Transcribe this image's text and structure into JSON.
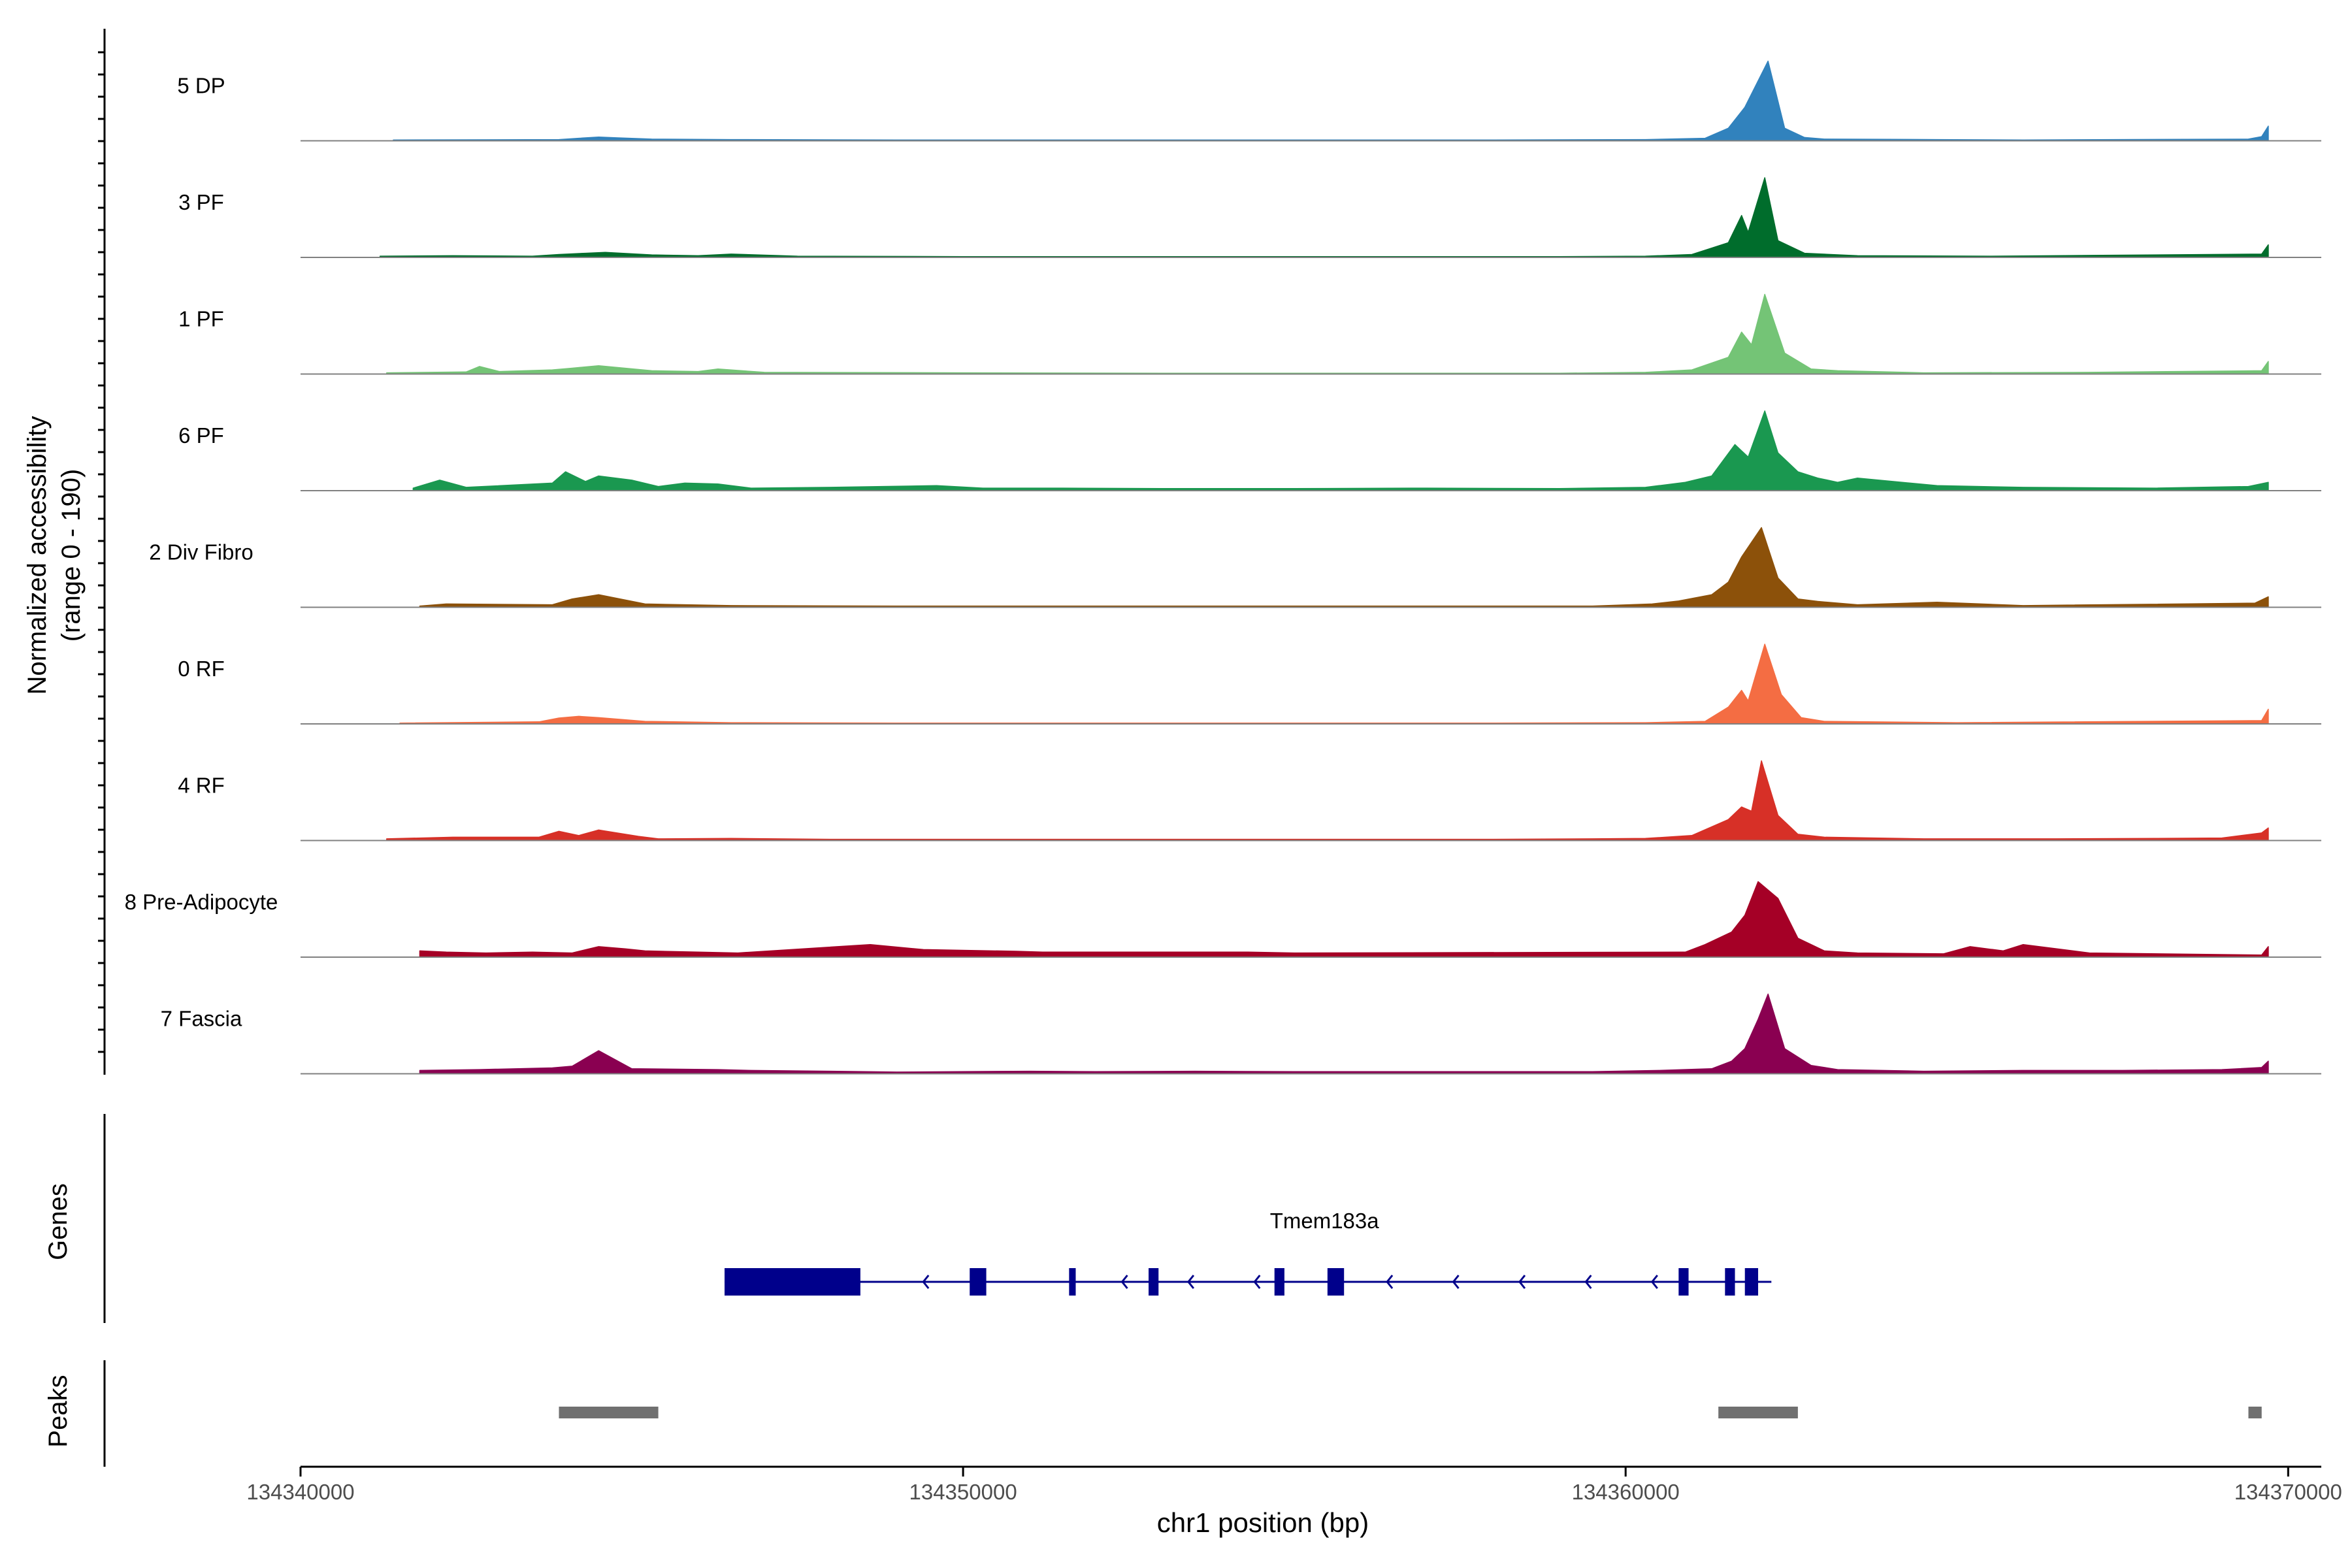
{
  "chart_data": {
    "type": "area",
    "y_axis_label": "Normalized accessibility\n(range 0 - 190)",
    "y_range": [
      0,
      190
    ],
    "xlabel": "chr1 position (bp)",
    "xlim": [
      134340000,
      134370500
    ],
    "x_ticks": [
      {
        "value": 134340000,
        "label": "134340000"
      },
      {
        "value": 134350000,
        "label": "134350000"
      },
      {
        "value": 134360000,
        "label": "134360000"
      },
      {
        "value": 134370000,
        "label": "134370000"
      }
    ],
    "tracks": [
      {
        "name": "5 DP",
        "color": "#3182bd",
        "points": [
          [
            134341400,
            2
          ],
          [
            134343900,
            3
          ],
          [
            134344200,
            6
          ],
          [
            134344500,
            9
          ],
          [
            134344800,
            7
          ],
          [
            134345300,
            4
          ],
          [
            134346500,
            3
          ],
          [
            134349000,
            2
          ],
          [
            134352000,
            2
          ],
          [
            134355000,
            2
          ],
          [
            134358000,
            2
          ],
          [
            134360300,
            3
          ],
          [
            134361200,
            6
          ],
          [
            134361550,
            30
          ],
          [
            134361800,
            80
          ],
          [
            134362150,
            190
          ],
          [
            134362400,
            30
          ],
          [
            134362700,
            8
          ],
          [
            134363000,
            4
          ],
          [
            134364700,
            3
          ],
          [
            134366000,
            2
          ],
          [
            134369400,
            4
          ],
          [
            134369600,
            10
          ],
          [
            134369700,
            35
          ]
        ]
      },
      {
        "name": "3 PF",
        "color": "#006d2c",
        "points": [
          [
            134341200,
            3
          ],
          [
            134342300,
            4
          ],
          [
            134343500,
            3
          ],
          [
            134343900,
            7
          ],
          [
            134344300,
            10
          ],
          [
            134344600,
            12
          ],
          [
            134345300,
            6
          ],
          [
            134346000,
            4
          ],
          [
            134346500,
            8
          ],
          [
            134347500,
            3
          ],
          [
            134350000,
            2
          ],
          [
            134353000,
            2
          ],
          [
            134356000,
            2
          ],
          [
            134359000,
            2
          ],
          [
            134360300,
            3
          ],
          [
            134361000,
            7
          ],
          [
            134361550,
            35
          ],
          [
            134361750,
            100
          ],
          [
            134361850,
            60
          ],
          [
            134362100,
            190
          ],
          [
            134362300,
            40
          ],
          [
            134362700,
            10
          ],
          [
            134363500,
            4
          ],
          [
            134365500,
            3
          ],
          [
            134367200,
            5
          ],
          [
            134369600,
            8
          ],
          [
            134369700,
            30
          ]
        ]
      },
      {
        "name": "1 PF",
        "color": "#74c476",
        "points": [
          [
            134341300,
            3
          ],
          [
            134342500,
            5
          ],
          [
            134342700,
            18
          ],
          [
            134343000,
            6
          ],
          [
            134343800,
            10
          ],
          [
            134344100,
            14
          ],
          [
            134344500,
            20
          ],
          [
            134345300,
            8
          ],
          [
            134346000,
            6
          ],
          [
            134346300,
            12
          ],
          [
            134347000,
            4
          ],
          [
            134350000,
            3
          ],
          [
            134353000,
            2
          ],
          [
            134356000,
            2
          ],
          [
            134359000,
            2
          ],
          [
            134360300,
            4
          ],
          [
            134361000,
            10
          ],
          [
            134361550,
            40
          ],
          [
            134361750,
            100
          ],
          [
            134361900,
            70
          ],
          [
            134362100,
            190
          ],
          [
            134362400,
            50
          ],
          [
            134362800,
            12
          ],
          [
            134363200,
            8
          ],
          [
            134364500,
            3
          ],
          [
            134367000,
            4
          ],
          [
            134369600,
            8
          ],
          [
            134369700,
            30
          ]
        ]
      },
      {
        "name": "6 PF",
        "color": "#1a9850",
        "points": [
          [
            134341700,
            6
          ],
          [
            134342100,
            25
          ],
          [
            134342500,
            8
          ],
          [
            134343800,
            18
          ],
          [
            134344000,
            45
          ],
          [
            134344300,
            22
          ],
          [
            134344500,
            35
          ],
          [
            134345000,
            25
          ],
          [
            134345400,
            10
          ],
          [
            134345800,
            18
          ],
          [
            134346300,
            16
          ],
          [
            134346800,
            6
          ],
          [
            134348000,
            8
          ],
          [
            134349600,
            12
          ],
          [
            134350300,
            6
          ],
          [
            134351500,
            6
          ],
          [
            134353000,
            5
          ],
          [
            134355000,
            5
          ],
          [
            134357000,
            6
          ],
          [
            134359000,
            5
          ],
          [
            134360300,
            8
          ],
          [
            134360900,
            20
          ],
          [
            134361300,
            35
          ],
          [
            134361650,
            110
          ],
          [
            134361850,
            80
          ],
          [
            134362100,
            190
          ],
          [
            134362300,
            90
          ],
          [
            134362600,
            45
          ],
          [
            134362900,
            30
          ],
          [
            134363200,
            20
          ],
          [
            134363500,
            30
          ],
          [
            134364700,
            12
          ],
          [
            134366000,
            8
          ],
          [
            134368000,
            6
          ],
          [
            134369400,
            10
          ],
          [
            134369700,
            20
          ]
        ]
      },
      {
        "name": "2 Div Fibro",
        "color": "#8c510a",
        "points": [
          [
            134341800,
            3
          ],
          [
            134342200,
            8
          ],
          [
            134343800,
            6
          ],
          [
            134344100,
            20
          ],
          [
            134344500,
            30
          ],
          [
            134345200,
            8
          ],
          [
            134346500,
            4
          ],
          [
            134349000,
            3
          ],
          [
            134352000,
            3
          ],
          [
            134355000,
            3
          ],
          [
            134358000,
            3
          ],
          [
            134359500,
            3
          ],
          [
            134360400,
            8
          ],
          [
            134360800,
            15
          ],
          [
            134361300,
            30
          ],
          [
            134361550,
            60
          ],
          [
            134361750,
            120
          ],
          [
            134362050,
            190
          ],
          [
            134362300,
            70
          ],
          [
            134362600,
            20
          ],
          [
            134362900,
            14
          ],
          [
            134363500,
            6
          ],
          [
            134364700,
            12
          ],
          [
            134366000,
            4
          ],
          [
            134369500,
            10
          ],
          [
            134369700,
            25
          ]
        ]
      },
      {
        "name": "0 RF",
        "color": "#f46d43",
        "points": [
          [
            134341500,
            2
          ],
          [
            134343600,
            5
          ],
          [
            134343900,
            14
          ],
          [
            134344200,
            18
          ],
          [
            134344500,
            15
          ],
          [
            134345200,
            6
          ],
          [
            134346500,
            3
          ],
          [
            134349000,
            2
          ],
          [
            134352000,
            2
          ],
          [
            134355000,
            2
          ],
          [
            134358000,
            2
          ],
          [
            134360300,
            3
          ],
          [
            134361200,
            6
          ],
          [
            134361550,
            40
          ],
          [
            134361750,
            80
          ],
          [
            134361850,
            55
          ],
          [
            134362100,
            190
          ],
          [
            134362350,
            70
          ],
          [
            134362650,
            15
          ],
          [
            134363000,
            6
          ],
          [
            134365000,
            3
          ],
          [
            134369600,
            8
          ],
          [
            134369700,
            35
          ]
        ]
      },
      {
        "name": "4 RF",
        "color": "#d73027",
        "points": [
          [
            134341300,
            4
          ],
          [
            134342300,
            8
          ],
          [
            134343600,
            8
          ],
          [
            134343900,
            22
          ],
          [
            134344200,
            12
          ],
          [
            134344500,
            25
          ],
          [
            134345100,
            10
          ],
          [
            134345400,
            4
          ],
          [
            134346500,
            5
          ],
          [
            134348000,
            3
          ],
          [
            134350000,
            3
          ],
          [
            134352000,
            3
          ],
          [
            134354000,
            3
          ],
          [
            134356000,
            3
          ],
          [
            134358000,
            3
          ],
          [
            134359500,
            4
          ],
          [
            134360300,
            5
          ],
          [
            134361000,
            12
          ],
          [
            134361550,
            50
          ],
          [
            134361750,
            80
          ],
          [
            134361900,
            70
          ],
          [
            134362050,
            190
          ],
          [
            134362300,
            60
          ],
          [
            134362600,
            15
          ],
          [
            134363000,
            8
          ],
          [
            134364500,
            4
          ],
          [
            134366500,
            4
          ],
          [
            134368000,
            5
          ],
          [
            134369000,
            6
          ],
          [
            134369600,
            18
          ],
          [
            134369700,
            30
          ]
        ]
      },
      {
        "name": "8 Pre-Adipocyte",
        "color": "#a50026",
        "points": [
          [
            134341800,
            15
          ],
          [
            134342200,
            12
          ],
          [
            134342800,
            10
          ],
          [
            134343500,
            12
          ],
          [
            134344100,
            10
          ],
          [
            134344500,
            25
          ],
          [
            134344900,
            20
          ],
          [
            134345200,
            15
          ],
          [
            134346000,
            12
          ],
          [
            134346600,
            10
          ],
          [
            134348600,
            30
          ],
          [
            134349400,
            18
          ],
          [
            134350800,
            14
          ],
          [
            134351200,
            12
          ],
          [
            134354300,
            12
          ],
          [
            134355000,
            10
          ],
          [
            134360900,
            12
          ],
          [
            134361200,
            30
          ],
          [
            134361600,
            60
          ],
          [
            134361800,
            100
          ],
          [
            134362000,
            180
          ],
          [
            134362300,
            140
          ],
          [
            134362600,
            45
          ],
          [
            134363000,
            15
          ],
          [
            134363500,
            10
          ],
          [
            134364800,
            8
          ],
          [
            134365200,
            25
          ],
          [
            134365700,
            15
          ],
          [
            134366000,
            30
          ],
          [
            134367000,
            10
          ],
          [
            134369600,
            5
          ],
          [
            134369700,
            25
          ]
        ]
      },
      {
        "name": "7 Fascia",
        "color": "#8a0051",
        "points": [
          [
            134341800,
            8
          ],
          [
            134342700,
            10
          ],
          [
            134343800,
            14
          ],
          [
            134344100,
            18
          ],
          [
            134344500,
            55
          ],
          [
            134345000,
            12
          ],
          [
            134346300,
            10
          ],
          [
            134346800,
            8
          ],
          [
            134348000,
            6
          ],
          [
            134349000,
            4
          ],
          [
            134351000,
            6
          ],
          [
            134352000,
            5
          ],
          [
            134353500,
            6
          ],
          [
            134355000,
            5
          ],
          [
            134356500,
            5
          ],
          [
            134358000,
            5
          ],
          [
            134359500,
            5
          ],
          [
            134360500,
            8
          ],
          [
            134361300,
            12
          ],
          [
            134361600,
            30
          ],
          [
            134361800,
            60
          ],
          [
            134362000,
            130
          ],
          [
            134362150,
            190
          ],
          [
            134362400,
            60
          ],
          [
            134362800,
            20
          ],
          [
            134363200,
            10
          ],
          [
            134364500,
            6
          ],
          [
            134366000,
            8
          ],
          [
            134367500,
            8
          ],
          [
            134369000,
            10
          ],
          [
            134369600,
            15
          ],
          [
            134369700,
            30
          ]
        ]
      }
    ],
    "genes_title": "Genes",
    "gene": {
      "name": "Tmem183a",
      "strand": "-",
      "start": 134346400,
      "end": 134362200,
      "exons": [
        [
          134346400,
          134348450
        ],
        [
          134350100,
          134350350
        ],
        [
          134351600,
          134351700
        ],
        [
          134352800,
          134352950
        ],
        [
          134354700,
          134354850
        ],
        [
          134355500,
          134355750
        ],
        [
          134360800,
          134360950
        ],
        [
          134361500,
          134361650
        ],
        [
          134361800,
          134362000
        ]
      ]
    },
    "peaks_title": "Peaks",
    "peaks": [
      [
        134343900,
        134345400
      ],
      [
        134361400,
        134362600
      ],
      [
        134369400,
        134369600
      ]
    ]
  }
}
